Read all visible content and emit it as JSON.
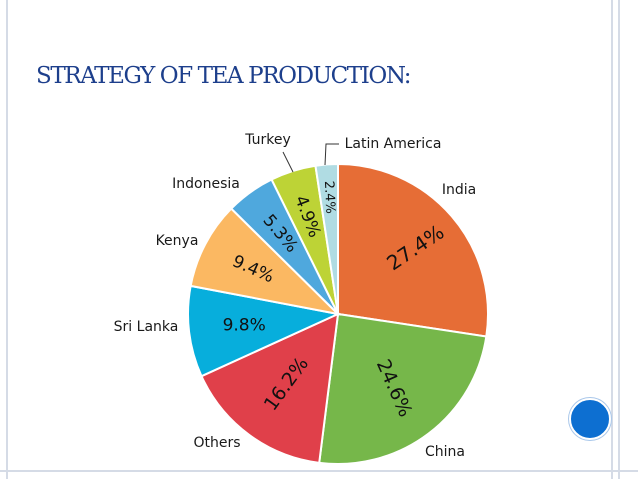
{
  "slide": {
    "title": "STRATEGY OF TEA PRODUCTION:",
    "accent_color": "#0d6fd1",
    "title_color": "#1d3f8c"
  },
  "chart_data": {
    "type": "pie",
    "title": "",
    "start": "top, clockwise",
    "slices": [
      {
        "label": "India",
        "value": 27.4,
        "pct_label": "27.4%",
        "color": "#e66d36"
      },
      {
        "label": "China",
        "value": 24.6,
        "pct_label": "24.6%",
        "color": "#76b74a"
      },
      {
        "label": "Others",
        "value": 16.2,
        "pct_label": "16.2%",
        "color": "#e0404a"
      },
      {
        "label": "Sri Lanka",
        "value": 9.8,
        "pct_label": "9.8%",
        "color": "#07aedc"
      },
      {
        "label": "Kenya",
        "value": 9.4,
        "pct_label": "9.4%",
        "color": "#fbb862"
      },
      {
        "label": "Indonesia",
        "value": 5.3,
        "pct_label": "5.3%",
        "color": "#4fa8dd"
      },
      {
        "label": "Turkey",
        "value": 4.9,
        "pct_label": "4.9%",
        "color": "#bdd336"
      },
      {
        "label": "Latin America",
        "value": 2.4,
        "pct_label": "2.4%",
        "color": "#b0dce3"
      }
    ]
  }
}
